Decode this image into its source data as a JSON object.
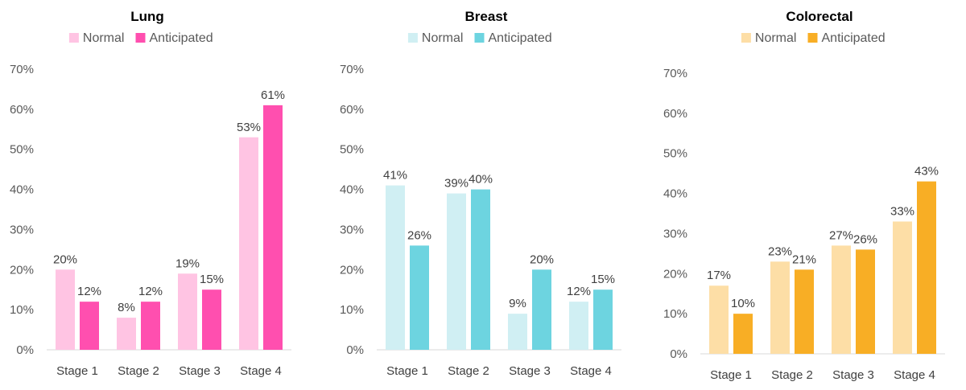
{
  "chart_data": [
    {
      "type": "bar",
      "title": "Lung",
      "categories": [
        "Stage 1",
        "Stage 2",
        "Stage 3",
        "Stage 4"
      ],
      "series": [
        {
          "name": "Normal",
          "values": [
            20,
            8,
            19,
            53
          ],
          "labels": [
            "20%",
            "8%",
            "19%",
            "53%"
          ],
          "color": "#FFC4E3"
        },
        {
          "name": "Anticipated",
          "values": [
            12,
            12,
            15,
            61
          ],
          "labels": [
            "12%",
            "12%",
            "15%",
            "61%"
          ],
          "color": "#FF4FAF"
        }
      ],
      "ylim": [
        0,
        70
      ],
      "yticks": [
        "0%",
        "10%",
        "20%",
        "30%",
        "40%",
        "50%",
        "60%",
        "70%"
      ],
      "grid": false,
      "legend": "top"
    },
    {
      "type": "bar",
      "title": "Breast",
      "categories": [
        "Stage 1",
        "Stage 2",
        "Stage 3",
        "Stage 4"
      ],
      "series": [
        {
          "name": "Normal",
          "values": [
            41,
            39,
            9,
            12
          ],
          "labels": [
            "41%",
            "39%",
            "9%",
            "12%"
          ],
          "color": "#D0EFF3"
        },
        {
          "name": "Anticipated",
          "values": [
            26,
            40,
            20,
            15
          ],
          "labels": [
            "26%",
            "40%",
            "20%",
            "15%"
          ],
          "color": "#6DD4E0"
        }
      ],
      "ylim": [
        0,
        70
      ],
      "yticks": [
        "0%",
        "10%",
        "20%",
        "30%",
        "40%",
        "50%",
        "60%",
        "70%"
      ],
      "grid": false,
      "legend": "top"
    },
    {
      "type": "bar",
      "title": "Colorectal",
      "categories": [
        "Stage 1",
        "Stage 2",
        "Stage 3",
        "Stage 4"
      ],
      "series": [
        {
          "name": "Normal",
          "values": [
            17,
            23,
            27,
            33
          ],
          "labels": [
            "17%",
            "23%",
            "27%",
            "33%"
          ],
          "color": "#FDDEA6"
        },
        {
          "name": "Anticipated",
          "values": [
            10,
            21,
            26,
            43
          ],
          "labels": [
            "10%",
            "21%",
            "26%",
            "43%"
          ],
          "color": "#F8AE25"
        }
      ],
      "ylim": [
        0,
        70
      ],
      "yticks": [
        "0%",
        "10%",
        "20%",
        "30%",
        "40%",
        "50%",
        "60%",
        "70%"
      ],
      "grid": false,
      "legend": "top"
    }
  ]
}
